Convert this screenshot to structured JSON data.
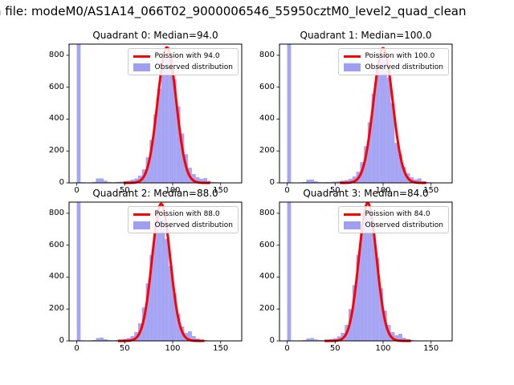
{
  "figure": {
    "title": "n file: modeM0/AS1A14_066T02_9000006546_55950cztM0_level2_quad_clean"
  },
  "chart_data": {
    "type": "bar",
    "subtype": "histogram-with-fit-line",
    "title": "n file: modeM0/AS1A14_066T02_9000006546_55950cztM0_level2_quad_clean",
    "x_ticks": [
      0,
      50,
      100,
      150
    ],
    "y_ticks": [
      0,
      200,
      400,
      600,
      800
    ],
    "xlim": [
      -8,
      172
    ],
    "ylim": [
      0,
      870
    ],
    "bin_width": 4,
    "grid": false,
    "legend_position": "upper right",
    "colors": {
      "hist_fill": "#7f7fee",
      "curve": "#ff0000"
    },
    "quadrants": [
      {
        "title": "Quadrant 0: Median=94.0",
        "median": 94.0,
        "legend": {
          "curve": "Poission with 94.0",
          "hist": "Observed distribution"
        },
        "curve": {
          "amplitude": 850,
          "center": 94,
          "sigma": 9.7
        },
        "counts": [
          880,
          4,
          2,
          3,
          6,
          28,
          28,
          14,
          6,
          4,
          6,
          8,
          10,
          14,
          20,
          28,
          45,
          85,
          160,
          270,
          430,
          590,
          720,
          790,
          770,
          650,
          480,
          310,
          180,
          95,
          55,
          35,
          25,
          30,
          12,
          6,
          4,
          3,
          2,
          1,
          1,
          0
        ]
      },
      {
        "title": "Quadrant 1: Median=100.0",
        "median": 100.0,
        "legend": {
          "curve": "Poission with 100.0",
          "hist": "Observed distribution"
        },
        "curve": {
          "amplitude": 845,
          "center": 100,
          "sigma": 10.0
        },
        "counts": [
          880,
          3,
          2,
          3,
          5,
          20,
          22,
          10,
          5,
          4,
          5,
          6,
          8,
          10,
          14,
          18,
          25,
          40,
          70,
          130,
          230,
          380,
          560,
          700,
          800,
          780,
          660,
          500,
          250,
          180,
          100,
          60,
          35,
          22,
          28,
          10,
          5,
          3,
          2,
          1,
          1,
          0
        ]
      },
      {
        "title": "Quadrant 2: Median=88.0",
        "median": 88.0,
        "legend": {
          "curve": "Poission with 88.0",
          "hist": "Observed distribution"
        },
        "curve": {
          "amplitude": 860,
          "center": 88,
          "sigma": 9.4
        },
        "counts": [
          880,
          3,
          2,
          3,
          5,
          18,
          20,
          10,
          5,
          4,
          6,
          8,
          12,
          18,
          30,
          55,
          110,
          210,
          360,
          540,
          700,
          790,
          760,
          640,
          470,
          300,
          170,
          90,
          50,
          60,
          30,
          15,
          8,
          5,
          3,
          2,
          1,
          1,
          0,
          0,
          0,
          0
        ]
      },
      {
        "title": "Quadrant 3: Median=84.0",
        "median": 84.0,
        "legend": {
          "curve": "Poission with 84.0",
          "hist": "Observed distribution"
        },
        "curve": {
          "amplitude": 865,
          "center": 84,
          "sigma": 9.2
        },
        "counts": [
          880,
          3,
          2,
          3,
          5,
          15,
          18,
          9,
          5,
          4,
          6,
          10,
          16,
          28,
          50,
          100,
          200,
          350,
          540,
          700,
          800,
          820,
          700,
          520,
          330,
          190,
          100,
          55,
          35,
          45,
          20,
          10,
          6,
          3,
          2,
          1,
          1,
          0,
          0,
          0,
          0,
          0
        ]
      }
    ]
  }
}
